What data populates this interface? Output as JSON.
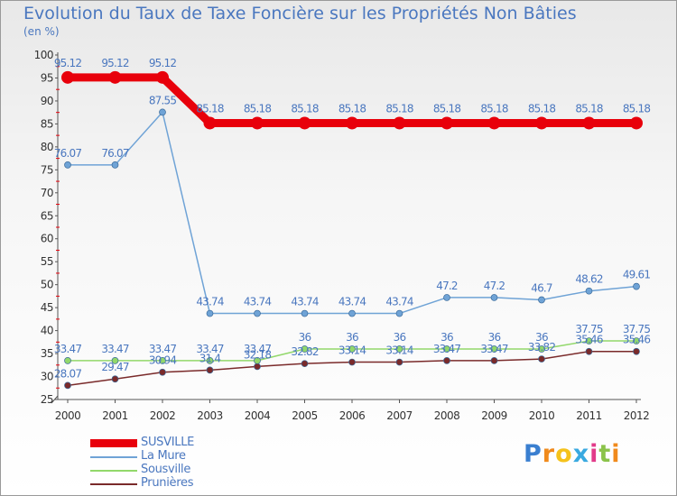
{
  "header": {
    "title": "Evolution du Taux de Taxe Foncière sur les Propriétés Non Bâties",
    "unit": "(en %)"
  },
  "logo": {
    "text": "Proxiti"
  },
  "chart_data": {
    "type": "line",
    "x": [
      "2000",
      "2001",
      "2002",
      "2003",
      "2004",
      "2005",
      "2006",
      "2007",
      "2008",
      "2009",
      "2010",
      "2011",
      "2012"
    ],
    "ylim": [
      25,
      100
    ],
    "yticks": [
      25,
      30,
      35,
      40,
      45,
      50,
      55,
      60,
      65,
      70,
      75,
      80,
      85,
      90,
      95,
      100
    ],
    "grid": false,
    "legend_position": "bottom-left",
    "series": [
      {
        "name": "SUSVILLE",
        "color": "#e8000b",
        "values": [
          95.12,
          95.12,
          95.12,
          85.18,
          85.18,
          85.18,
          85.18,
          85.18,
          85.18,
          85.18,
          85.18,
          85.18,
          85.18
        ],
        "labels": [
          "95.12",
          "95.12",
          "95.12",
          "85.18",
          "85.18",
          "85.18",
          "85.18",
          "85.18",
          "85.18",
          "85.18",
          "85.18",
          "85.18",
          "85.18"
        ]
      },
      {
        "name": "La Mure",
        "color": "#6fa3d6",
        "values": [
          76.07,
          76.07,
          87.55,
          43.74,
          43.74,
          43.74,
          43.74,
          43.74,
          47.2,
          47.2,
          46.7,
          48.62,
          49.61
        ],
        "labels": [
          "76.07",
          "76.07",
          "87.55",
          "43.74",
          "43.74",
          "43.74",
          "43.74",
          "43.74",
          "47.2",
          "47.2",
          "46.7",
          "48.62",
          "49.61"
        ]
      },
      {
        "name": "Sousville",
        "color": "#92d86a",
        "values": [
          33.47,
          33.47,
          33.47,
          33.47,
          33.47,
          36,
          36,
          36,
          36,
          36,
          36,
          37.75,
          37.75
        ],
        "labels": [
          "33.47",
          "33.47",
          "33.47",
          "33.47",
          "33.47",
          "36",
          "36",
          "36",
          "36",
          "36",
          "36",
          "37.75",
          "37.75"
        ]
      },
      {
        "name": "Prunières",
        "color": "#7a2a2a",
        "values": [
          28.07,
          29.47,
          30.94,
          31.4,
          32.18,
          32.82,
          33.14,
          33.14,
          33.47,
          33.47,
          33.82,
          35.46,
          35.46
        ],
        "labels": [
          "28.07",
          "29.47",
          "30.94",
          "31.4",
          "32.18",
          "32.82",
          "33.14",
          "33.14",
          "33.47",
          "33.47",
          "33.82",
          "35.46",
          "35.46"
        ]
      }
    ]
  }
}
